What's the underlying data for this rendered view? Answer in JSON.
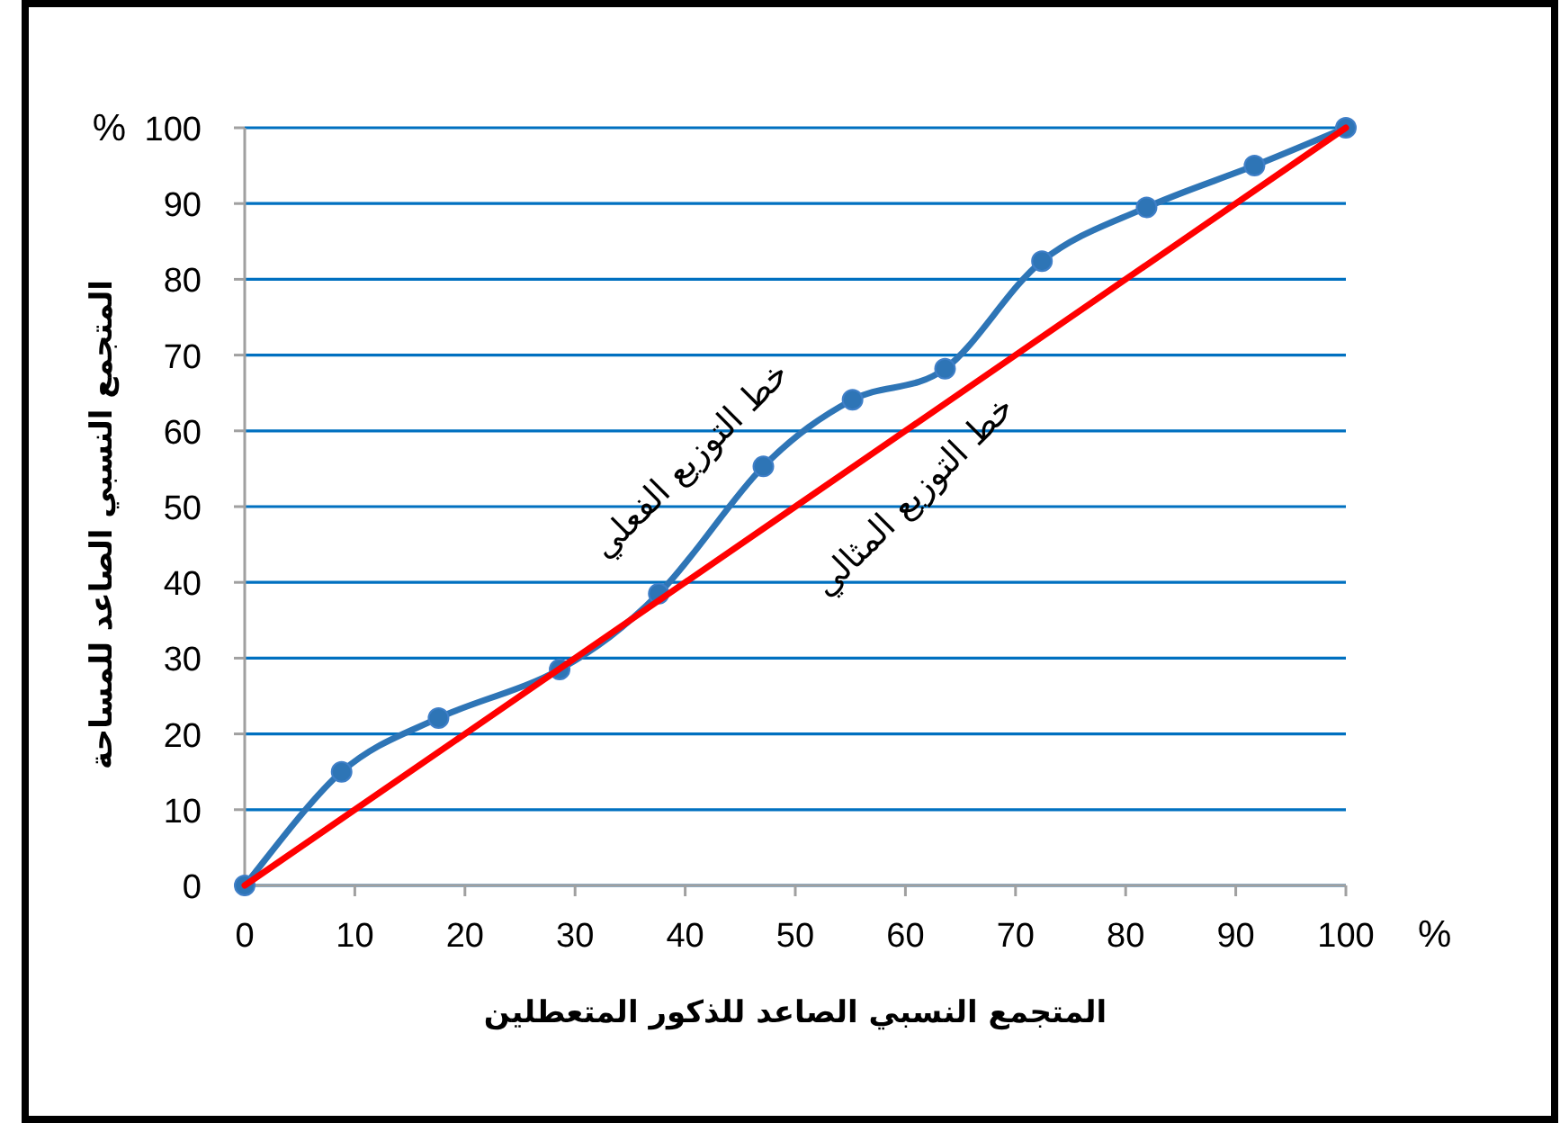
{
  "chart_data": {
    "type": "line",
    "xlabel": "المتجمع النسبي الصاعد للذكور المتعطلين",
    "ylabel": "المتجمع النسبي الصاعد للمساحة",
    "xlim": [
      0,
      100
    ],
    "ylim": [
      0,
      100
    ],
    "xticks": [
      0,
      10,
      20,
      30,
      40,
      50,
      60,
      70,
      80,
      90,
      100
    ],
    "yticks": [
      0,
      10,
      20,
      30,
      40,
      50,
      60,
      70,
      80,
      90,
      100
    ],
    "grid": "y",
    "annotations": [
      "%",
      "%"
    ],
    "series": [
      {
        "name": "خط التوزيع الفعلي",
        "color": "#2e75b6",
        "marker": "circle",
        "x": [
          0,
          8.8,
          17.6,
          28.6,
          37.6,
          47.1,
          55.2,
          63.6,
          72.4,
          81.9,
          91.7,
          100
        ],
        "values": [
          0,
          15,
          22.1,
          28.5,
          38.5,
          55.3,
          64.1,
          68.2,
          82.4,
          89.5,
          95,
          100
        ]
      },
      {
        "name": "خط التوزيع المثالي",
        "color": "#ff0000",
        "marker": "none",
        "x": [
          0,
          100
        ],
        "values": [
          0,
          100
        ]
      }
    ]
  }
}
